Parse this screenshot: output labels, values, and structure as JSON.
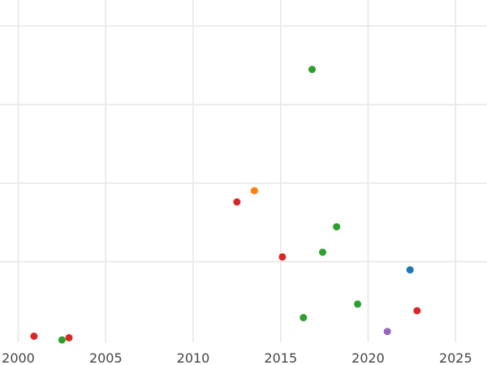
{
  "chart_data": {
    "type": "scatter",
    "title": "",
    "xlabel": "",
    "ylabel": "",
    "grid": true,
    "legend": "none",
    "xlim": [
      2000,
      2027
    ],
    "ylim": [
      0,
      105
    ],
    "xticks": [
      2000,
      2005,
      2010,
      2015,
      2020,
      2025
    ],
    "xtick_labels": [
      "2000",
      "2005",
      "2010",
      "2015",
      "2020",
      "2025"
    ],
    "yticks": [
      0,
      25,
      50,
      75,
      100
    ],
    "colors": {
      "blue": "#1f77b4",
      "orange": "#ff7f0e",
      "green": "#2ca02c",
      "red": "#d62728",
      "purple": "#9467bd"
    },
    "points": [
      {
        "x": 2000.9,
        "y": 1.3,
        "color": "red"
      },
      {
        "x": 2002.5,
        "y": 0.1,
        "color": "green"
      },
      {
        "x": 2002.9,
        "y": 0.8,
        "color": "red"
      },
      {
        "x": 2012.5,
        "y": 44.0,
        "color": "red"
      },
      {
        "x": 2013.5,
        "y": 47.6,
        "color": "orange"
      },
      {
        "x": 2015.1,
        "y": 26.5,
        "color": "red"
      },
      {
        "x": 2016.3,
        "y": 7.2,
        "color": "green"
      },
      {
        "x": 2016.8,
        "y": 86.2,
        "color": "green"
      },
      {
        "x": 2017.4,
        "y": 28.0,
        "color": "green"
      },
      {
        "x": 2018.2,
        "y": 36.1,
        "color": "green"
      },
      {
        "x": 2019.4,
        "y": 11.5,
        "color": "green"
      },
      {
        "x": 2021.1,
        "y": 2.8,
        "color": "purple"
      },
      {
        "x": 2022.4,
        "y": 22.4,
        "color": "blue"
      },
      {
        "x": 2022.8,
        "y": 9.4,
        "color": "red"
      }
    ]
  }
}
